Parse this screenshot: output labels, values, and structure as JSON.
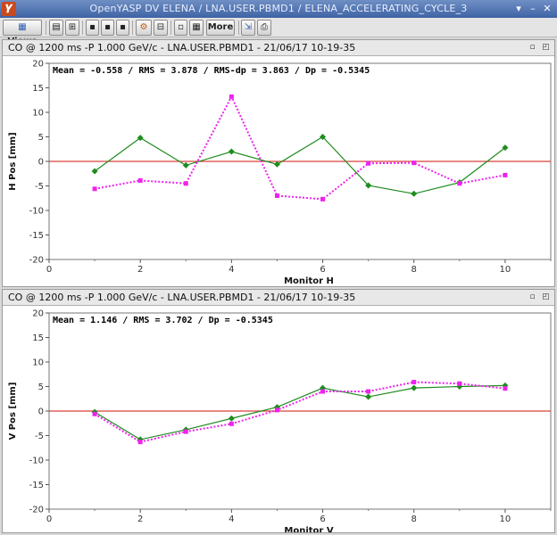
{
  "window": {
    "title": "OpenYASP DV ELENA / LNA.USER.PBMD1 / ELENA_ACCELERATING_CYCLE_3",
    "icon": "app-logo-icon",
    "controls": [
      "minimize-icon",
      "restore-icon",
      "close-icon"
    ]
  },
  "toolbar": {
    "views_label": "Views",
    "more_label": "More"
  },
  "colors": {
    "green": "#1e8c1e",
    "magenta": "#ee22ee",
    "zero_line": "#d9413b"
  },
  "chart_data": [
    {
      "type": "line",
      "header": "CO @ 1200 ms -P   1.000 GeV/c - LNA.USER.PBMD1 - 21/06/17 10-19-35",
      "stats": "Mean = -0.558 / RMS =  3.878 / RMS-dp =  3.863 / Dp = -0.5345",
      "xlabel": "Monitor H",
      "ylabel": "H Pos [mm]",
      "xlim": [
        0,
        11
      ],
      "ylim": [
        -20,
        20
      ],
      "xticks": [
        0,
        2,
        4,
        6,
        8,
        10
      ],
      "yticks": [
        20,
        15,
        10,
        5,
        0,
        -5,
        -10,
        -15,
        -20
      ],
      "grid": false,
      "series": [
        {
          "color": "#1e8c1e",
          "style": "solid",
          "marker": "diamond",
          "x": [
            1,
            2,
            3,
            4,
            5,
            6,
            7,
            8,
            9,
            10
          ],
          "y": [
            -2.0,
            4.8,
            -0.8,
            2.0,
            -0.6,
            5.0,
            -4.9,
            -6.6,
            -4.3,
            2.8
          ]
        },
        {
          "color": "#ee22ee",
          "style": "dotted",
          "marker": "square",
          "x": [
            1,
            2,
            3,
            4,
            5,
            6,
            7,
            8,
            9,
            10
          ],
          "y": [
            -5.6,
            -3.9,
            -4.5,
            13.2,
            -7.0,
            -7.7,
            -0.4,
            -0.3,
            -4.5,
            -2.8
          ]
        }
      ]
    },
    {
      "type": "line",
      "header": "CO @ 1200 ms -P   1.000 GeV/c - LNA.USER.PBMD1 - 21/06/17 10-19-35",
      "stats": "Mean =  1.146 / RMS =  3.702 / Dp = -0.5345",
      "xlabel": "Monitor V",
      "ylabel": "V Pos [mm]",
      "xlim": [
        0,
        11
      ],
      "ylim": [
        -20,
        20
      ],
      "xticks": [
        0,
        2,
        4,
        6,
        8,
        10
      ],
      "yticks": [
        20,
        15,
        10,
        5,
        0,
        -5,
        -10,
        -15,
        -20
      ],
      "grid": false,
      "series": [
        {
          "color": "#1e8c1e",
          "style": "solid",
          "marker": "diamond",
          "x": [
            1,
            2,
            3,
            4,
            5,
            6,
            7,
            8,
            9,
            10
          ],
          "y": [
            -0.2,
            -5.8,
            -3.8,
            -1.5,
            0.8,
            4.7,
            2.9,
            4.7,
            5.0,
            5.2
          ]
        },
        {
          "color": "#ee22ee",
          "style": "dotted",
          "marker": "square",
          "x": [
            1,
            2,
            3,
            4,
            5,
            6,
            7,
            8,
            9,
            10
          ],
          "y": [
            -0.6,
            -6.3,
            -4.2,
            -2.6,
            0.2,
            4.0,
            4.0,
            5.9,
            5.6,
            4.6
          ]
        }
      ]
    }
  ]
}
